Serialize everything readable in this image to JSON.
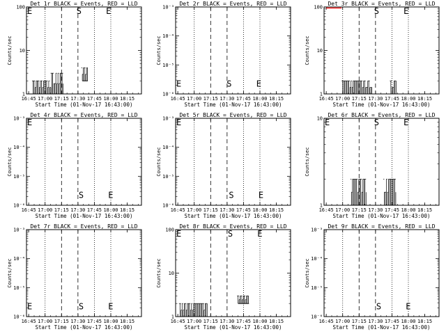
{
  "x_ticks": [
    "16:45",
    "17:00",
    "17:15",
    "17:30",
    "17:45",
    "18:00",
    "18:15"
  ],
  "x_label": "Start Time (01-Nov-17 16:43:00)",
  "y_label": "Counts/sec",
  "marker_labels": {
    "start": "S",
    "end": "E"
  },
  "chart_data": [
    {
      "type": "line",
      "title": "Det 1r BLACK = Events, RED = LLD",
      "ylog": true,
      "ylim": [
        1,
        100
      ],
      "y_ticks": [
        "1",
        "10",
        "100"
      ],
      "y_tick_values": [
        1,
        10,
        100
      ],
      "markers": [
        {
          "label": "E",
          "x": 0,
          "y": 100
        },
        {
          "label": "S",
          "x": 45,
          "y": 100
        },
        {
          "label": "E",
          "x": 72,
          "y": 100
        }
      ],
      "series": [
        {
          "color": "#000000",
          "segments": [
            {
              "x_start": 6,
              "x_end": 23,
              "y_low": 1,
              "y_high": 2
            },
            {
              "x_start": 23,
              "x_end": 34,
              "y_low": 1,
              "y_high": 3
            },
            {
              "x_start": 51,
              "x_end": 56,
              "y_low": 2,
              "y_high": 4
            }
          ]
        }
      ]
    },
    {
      "type": "line",
      "title": "Det 2r BLACK = Events, RED = LLD",
      "ylog": true,
      "ylim": [
        1e-06,
        0.001
      ],
      "y_ticks": [
        "10⁻⁶",
        "10⁻⁵",
        "10⁻⁴",
        "10⁻³"
      ],
      "y_tick_values": [
        1e-06,
        1e-05,
        0.0001,
        0.001
      ],
      "markers": [
        {
          "label": "E",
          "x": 0,
          "y": 1.8e-06
        },
        {
          "label": "S",
          "x": 46,
          "y": 1.8e-06
        },
        {
          "label": "E",
          "x": 73,
          "y": 1.8e-06
        }
      ],
      "series": []
    },
    {
      "type": "line",
      "title": "Det 3r BLACK = Events, RED = LLD",
      "ylog": true,
      "ylim": [
        1,
        100
      ],
      "y_ticks": [
        "1",
        "10",
        "100"
      ],
      "y_tick_values": [
        1,
        10,
        100
      ],
      "markers": [
        {
          "label": "S",
          "x": 45,
          "y": 100
        },
        {
          "label": "E",
          "x": 72,
          "y": 100
        }
      ],
      "series": [
        {
          "color": "#000000",
          "segments": [
            {
              "x_start": 17,
              "x_end": 44,
              "y_low": 1,
              "y_high": 2
            },
            {
              "x_start": 61,
              "x_end": 66,
              "y_low": 1,
              "y_high": 2
            }
          ]
        },
        {
          "color": "#ff0000",
          "segments": [
            {
              "x_start": 2,
              "x_end": 16,
              "y_low": 97,
              "y_high": 100
            }
          ]
        }
      ]
    },
    {
      "type": "line",
      "title": "Det 4r BLACK = Events, RED = LLD",
      "ylog": true,
      "ylim": [
        1e-06,
        0.001
      ],
      "y_ticks": [
        "10⁻⁶",
        "10⁻⁵",
        "10⁻⁴",
        "10⁻³"
      ],
      "y_tick_values": [
        1e-06,
        1e-05,
        0.0001,
        0.001
      ],
      "markers": [
        {
          "label": "E",
          "x": 0,
          "y": 0.00099
        },
        {
          "label": "S",
          "x": 47,
          "y": 1.8e-06
        },
        {
          "label": "E",
          "x": 74,
          "y": 1.8e-06
        }
      ],
      "series": []
    },
    {
      "type": "line",
      "title": "Det 5r BLACK = Events, RED = LLD",
      "ylog": true,
      "ylim": [
        1e-06,
        0.001
      ],
      "y_ticks": [
        "10⁻⁶",
        "10⁻⁵",
        "10⁻⁴",
        "10⁻³"
      ],
      "y_tick_values": [
        1e-06,
        1e-05,
        0.0001,
        0.001
      ],
      "markers": [
        {
          "label": "E",
          "x": 0,
          "y": 0.00099
        },
        {
          "label": "S",
          "x": 48,
          "y": 1.8e-06
        },
        {
          "label": "E",
          "x": 75,
          "y": 1.8e-06
        }
      ],
      "series": []
    },
    {
      "type": "line",
      "title": "Det 6r BLACK = Events, RED = LLD",
      "ylog": true,
      "ylim": [
        1,
        10
      ],
      "y_ticks": [
        "1",
        "10"
      ],
      "y_tick_values": [
        1,
        10
      ],
      "markers": [
        {
          "label": "E",
          "x": 0,
          "y": 10
        },
        {
          "label": "S",
          "x": 45,
          "y": 10
        },
        {
          "label": "E",
          "x": 72,
          "y": 10
        }
      ],
      "series": [
        {
          "color": "#000000",
          "segments": [
            {
              "x_start": 25,
              "x_end": 39,
              "y_low": 1,
              "y_high": 2
            },
            {
              "x_start": 55,
              "x_end": 66,
              "y_low": 1,
              "y_high": 2
            }
          ]
        }
      ]
    },
    {
      "type": "line",
      "title": "Det 7r BLACK = Events, RED = LLD",
      "ylog": true,
      "ylim": [
        1e-06,
        0.001
      ],
      "y_ticks": [
        "10⁻⁶",
        "10⁻⁵",
        "10⁻⁴",
        "10⁻³"
      ],
      "y_tick_values": [
        1e-06,
        1e-05,
        0.0001,
        0.001
      ],
      "markers": [
        {
          "label": "E",
          "x": 0,
          "y": 1.8e-06
        },
        {
          "label": "S",
          "x": 47,
          "y": 1.8e-06
        },
        {
          "label": "E",
          "x": 74,
          "y": 1.8e-06
        }
      ],
      "series": []
    },
    {
      "type": "line",
      "title": "Det 8r BLACK = Events, RED = LLD",
      "ylog": true,
      "ylim": [
        1,
        100
      ],
      "y_ticks": [
        "1",
        "10",
        "100"
      ],
      "y_tick_values": [
        1,
        10,
        100
      ],
      "markers": [
        {
          "label": "E",
          "x": 0,
          "y": 100
        },
        {
          "label": "S",
          "x": 47,
          "y": 100
        },
        {
          "label": "E",
          "x": 74,
          "y": 100
        }
      ],
      "series": [
        {
          "color": "#000000",
          "segments": [
            {
              "x_start": 4,
              "x_end": 29,
              "y_low": 1,
              "y_high": 2
            },
            {
              "x_start": 57,
              "x_end": 67,
              "y_low": 2,
              "y_high": 3
            }
          ]
        }
      ]
    },
    {
      "type": "line",
      "title": "Det 9r BLACK = Events, RED = LLD",
      "ylog": true,
      "ylim": [
        1e-06,
        0.001
      ],
      "y_ticks": [
        "10⁻⁶",
        "10⁻⁵",
        "10⁻⁴",
        "10⁻³"
      ],
      "y_tick_values": [
        1e-06,
        1e-05,
        0.0001,
        0.001
      ],
      "markers": [
        {
          "label": "S",
          "x": 47,
          "y": 1.8e-06
        },
        {
          "label": "E",
          "x": 74,
          "y": 1.8e-06
        }
      ],
      "series": []
    }
  ]
}
